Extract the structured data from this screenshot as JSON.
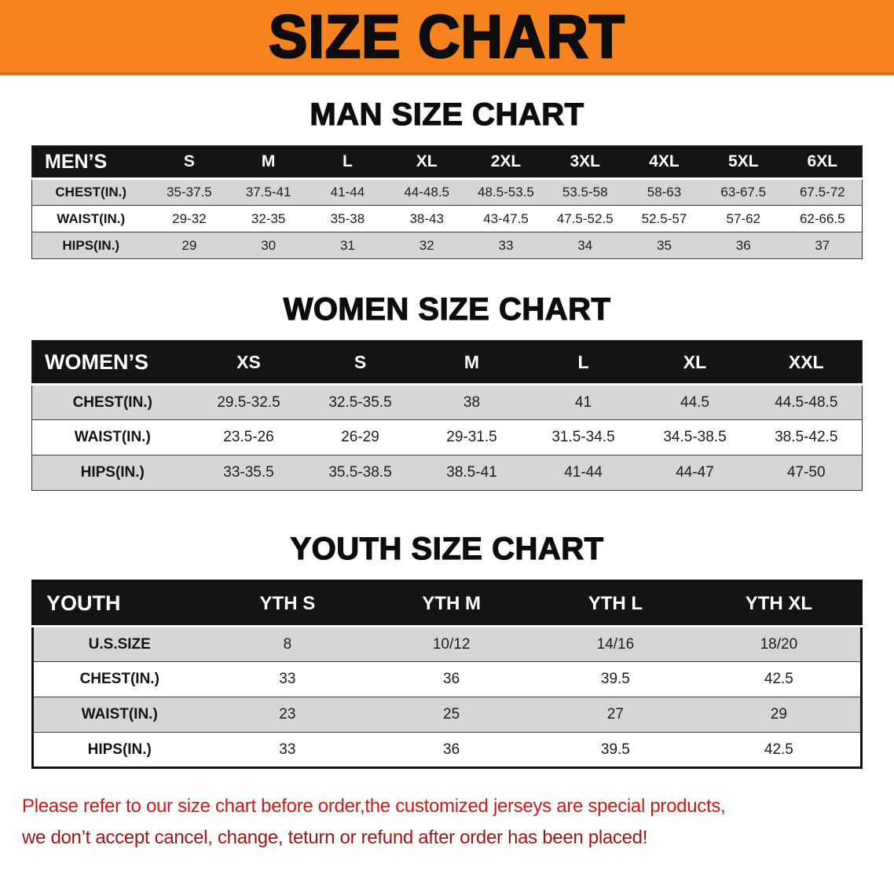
{
  "banner": {
    "title": "SIZE CHART"
  },
  "sections": {
    "men": {
      "heading": "MAN SIZE CHART",
      "table": {
        "header": [
          "MEN’S",
          "S",
          "M",
          "L",
          "XL",
          "2XL",
          "3XL",
          "4XL",
          "5XL",
          "6XL"
        ],
        "rows": [
          {
            "label": "CHEST(IN.)",
            "values": [
              "35-37.5",
              "37.5-41",
              "41-44",
              "44-48.5",
              "48.5-53.5",
              "53.5-58",
              "58-63",
              "63-67.5",
              "67.5-72"
            ]
          },
          {
            "label": "WAIST(IN.)",
            "values": [
              "29-32",
              "32-35",
              "35-38",
              "38-43",
              "43-47.5",
              "47.5-52.5",
              "52.5-57",
              "57-62",
              "62-66.5"
            ]
          },
          {
            "label": "HIPS(IN.)",
            "values": [
              "29",
              "30",
              "31",
              "32",
              "33",
              "34",
              "35",
              "36",
              "37"
            ]
          }
        ]
      }
    },
    "women": {
      "heading": "WOMEN SIZE CHART",
      "table": {
        "header": [
          "WOMEN’S",
          "XS",
          "S",
          "M",
          "L",
          "XL",
          "XXL"
        ],
        "rows": [
          {
            "label": "CHEST(IN.)",
            "values": [
              "29.5-32.5",
              "32.5-35.5",
              "38",
              "41",
              "44.5",
              "44.5-48.5"
            ]
          },
          {
            "label": "WAIST(IN.)",
            "values": [
              "23.5-26",
              "26-29",
              "29-31.5",
              "31.5-34.5",
              "34.5-38.5",
              "38.5-42.5"
            ]
          },
          {
            "label": "HIPS(IN.)",
            "values": [
              "33-35.5",
              "35.5-38.5",
              "38.5-41",
              "41-44",
              "44-47",
              "47-50"
            ]
          }
        ]
      }
    },
    "youth": {
      "heading": "YOUTH SIZE CHART",
      "table": {
        "header": [
          "YOUTH",
          "YTH S",
          "YTH M",
          "YTH L",
          "YTH XL"
        ],
        "rows": [
          {
            "label": "U.S.SIZE",
            "values": [
              "8",
              "10/12",
              "14/16",
              "18/20"
            ]
          },
          {
            "label": "CHEST(IN.)",
            "values": [
              "33",
              "36",
              "39.5",
              "42.5"
            ]
          },
          {
            "label": "WAIST(IN.)",
            "values": [
              "23",
              "25",
              "27",
              "29"
            ]
          },
          {
            "label": "HIPS(IN.)",
            "values": [
              "33",
              "36",
              "39.5",
              "42.5"
            ]
          }
        ]
      }
    }
  },
  "footer": {
    "line1": "Please refer to our size chart before order,the customized jerseys are special products,",
    "line2": "we don’t accept cancel, change, teturn or refund after order has been placed!"
  },
  "colors": {
    "banner-bg": "#f6831d",
    "heading-text": "#0d0d0d",
    "table-header-bg": "#141414",
    "table-header-text": "#ffffff",
    "row-alt-bg": "#d6d6d6",
    "row-bg": "#ffffff",
    "footer-line1": "#cc1a1a",
    "footer-line2": "#9e1414"
  }
}
